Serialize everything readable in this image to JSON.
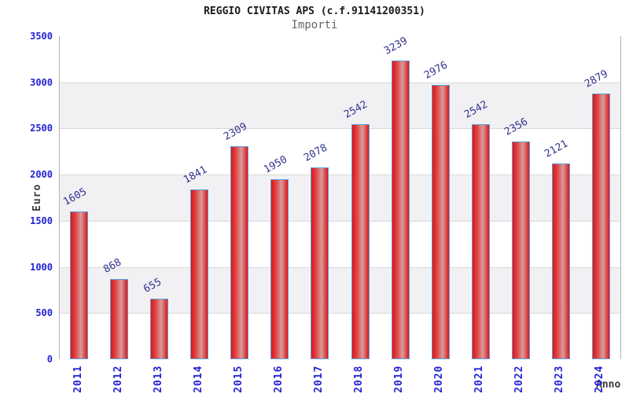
{
  "header": {
    "title": "REGGIO CIVITAS APS (c.f.91141200351)",
    "subtitle": "Importi"
  },
  "chart_data": {
    "type": "bar",
    "title": "REGGIO CIVITAS APS (c.f.91141200351)",
    "subtitle": "Importi",
    "xlabel": "Anno",
    "ylabel": "Euro",
    "categories": [
      "2011",
      "2012",
      "2013",
      "2014",
      "2015",
      "2016",
      "2017",
      "2018",
      "2019",
      "2020",
      "2021",
      "2022",
      "2023",
      "2024"
    ],
    "values": [
      1605,
      868,
      655,
      1841,
      2309,
      1950,
      2078,
      2542,
      3239,
      2976,
      2542,
      2356,
      2121,
      2879
    ],
    "ylim": [
      0,
      3500
    ],
    "yticks": [
      0,
      500,
      1000,
      1500,
      2000,
      2500,
      3000,
      3500
    ],
    "grid": true,
    "legend_position": "none",
    "bar_value_labels": true,
    "colors": {
      "bar_fill_dark": "#e01515",
      "bar_fill_mid": "#dd4848",
      "bar_fill_light": "#d89c9c",
      "bar_border": "#5b9fdf",
      "value_label": "#32328f",
      "axis_tick": "#2323d6",
      "band": "#f1f1f3",
      "gridline": "#d9d9d9",
      "plot_border": "#b3b3b3",
      "title": "#1a1a1a",
      "subtitle": "#666666",
      "axis_title": "#3a3a3a"
    }
  }
}
